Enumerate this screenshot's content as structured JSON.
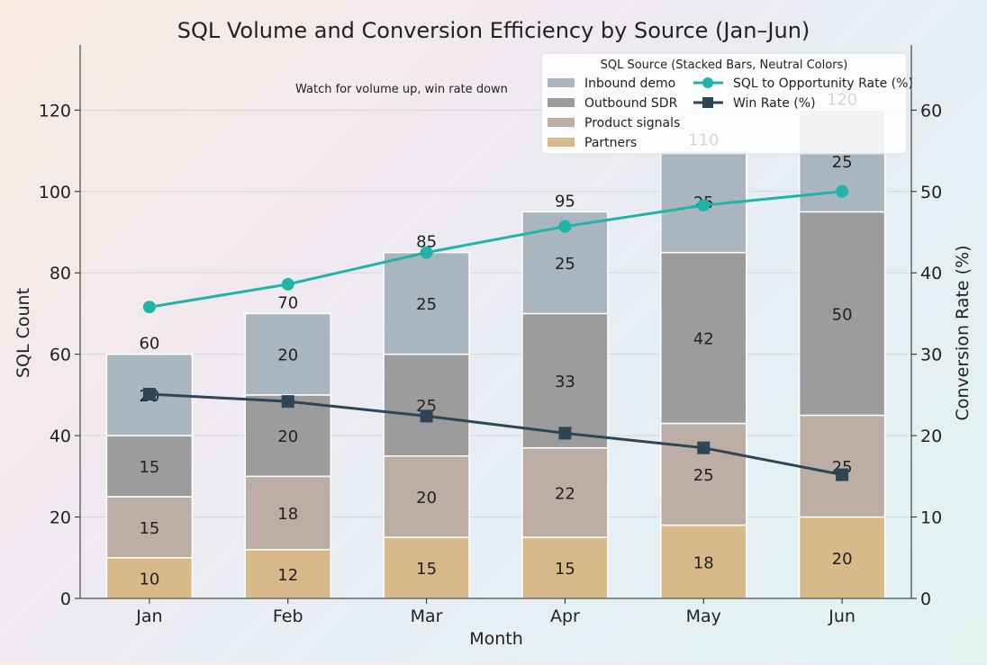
{
  "chart_data": {
    "type": "bar",
    "title": "SQL Volume and Conversion Efficiency by Source (Jan–Jun)",
    "xlabel": "Month",
    "ylabel": "SQL Count",
    "y2label": "Conversion Rate (%)",
    "ylim": [
      0,
      136
    ],
    "y2lim": [
      0,
      68
    ],
    "yticks": [
      0,
      20,
      40,
      60,
      80,
      100,
      120
    ],
    "y2ticks": [
      0,
      10,
      20,
      30,
      40,
      50,
      60
    ],
    "grid": true,
    "stacked": true,
    "annotation": "Watch for volume up, win rate down",
    "categories": [
      "Jan",
      "Feb",
      "Mar",
      "Apr",
      "May",
      "Jun"
    ],
    "totals": [
      60,
      70,
      85,
      95,
      110,
      120
    ],
    "series": [
      {
        "name": "Partners",
        "color": "#d8b98a",
        "values": [
          10,
          12,
          15,
          15,
          18,
          20
        ]
      },
      {
        "name": "Product signals",
        "color": "#bcaea4",
        "values": [
          15,
          18,
          20,
          22,
          25,
          25
        ]
      },
      {
        "name": "Outbound SDR",
        "color": "#9c9c9c",
        "values": [
          15,
          20,
          25,
          33,
          42,
          50
        ]
      },
      {
        "name": "Inbound demo",
        "color": "#a9b5bf",
        "values": [
          20,
          20,
          25,
          25,
          25,
          25
        ]
      }
    ],
    "lines": [
      {
        "name": "SQL to Opportunity Rate (%)",
        "color": "#1cb5a6",
        "marker": "circle",
        "axis": "right",
        "values": [
          35.8,
          38.6,
          42.5,
          45.7,
          48.3,
          50.0
        ]
      },
      {
        "name": "Win Rate (%)",
        "color": "#2e4556",
        "marker": "square",
        "axis": "right",
        "values": [
          25.1,
          24.2,
          22.4,
          20.3,
          18.5,
          15.2
        ]
      }
    ],
    "legend": {
      "title": "SQL Source (Stacked Bars, Neutral Colors)",
      "placement": "top-right"
    }
  }
}
